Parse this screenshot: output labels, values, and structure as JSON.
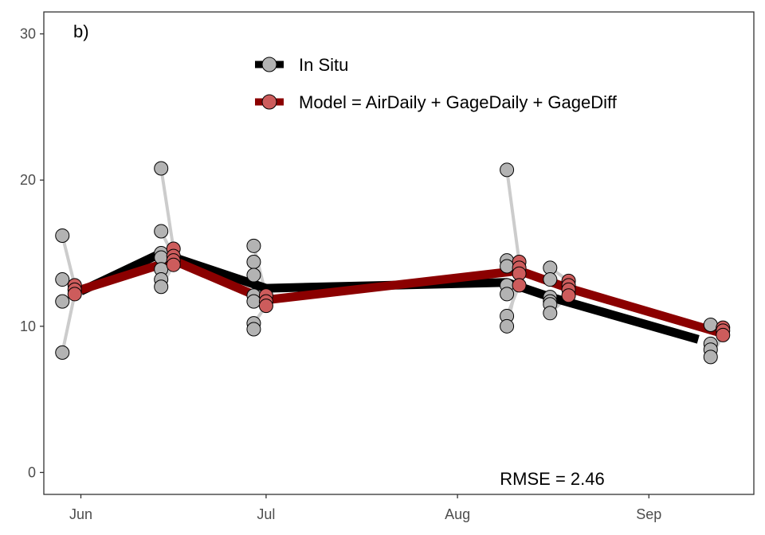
{
  "chart_data": {
    "type": "line",
    "panel_label": "b)",
    "annotation": "RMSE = 2.46",
    "xlabel": "",
    "ylabel": "",
    "x_axis": {
      "type": "date",
      "ticks": [
        "Jun",
        "Jul",
        "Aug",
        "Sep"
      ],
      "tick_dates": [
        "2017-06-01",
        "2017-07-01",
        "2017-08-01",
        "2017-09-01"
      ],
      "range": [
        "2017-05-26",
        "2017-09-18"
      ]
    },
    "y_axis": {
      "range": [
        -1.5,
        31.5
      ],
      "ticks": [
        "0",
        "10",
        "20",
        "30"
      ],
      "tick_values": [
        0,
        10,
        20,
        30
      ]
    },
    "grid": false,
    "legend_position": "top-center",
    "colors": {
      "in_situ_line": "#000000",
      "in_situ_point": "#b3b3b3",
      "model_line": "#8b0000",
      "model_point": "#cd5c5c",
      "connector": "#cccccc"
    },
    "series": [
      {
        "name": "In Situ",
        "line": [
          {
            "x": "2017-06-01",
            "y": 12.4
          },
          {
            "x": "2017-06-14",
            "y": 15.0
          },
          {
            "x": "2017-07-01",
            "y": 12.6
          },
          {
            "x": "2017-08-09",
            "y": 13.0
          },
          {
            "x": "2017-08-16",
            "y": 12.0
          },
          {
            "x": "2017-09-09",
            "y": 9.1
          }
        ],
        "points": [
          {
            "x": "2017-05-29",
            "y": 16.2
          },
          {
            "x": "2017-05-29",
            "y": 13.2
          },
          {
            "x": "2017-05-29",
            "y": 11.7
          },
          {
            "x": "2017-05-29",
            "y": 8.2
          },
          {
            "x": "2017-06-14",
            "y": 20.8
          },
          {
            "x": "2017-06-14",
            "y": 16.5
          },
          {
            "x": "2017-06-14",
            "y": 15.0
          },
          {
            "x": "2017-06-14",
            "y": 14.7
          },
          {
            "x": "2017-06-14",
            "y": 13.9
          },
          {
            "x": "2017-06-14",
            "y": 13.2
          },
          {
            "x": "2017-06-14",
            "y": 12.7
          },
          {
            "x": "2017-06-29",
            "y": 15.5
          },
          {
            "x": "2017-06-29",
            "y": 14.4
          },
          {
            "x": "2017-06-29",
            "y": 13.5
          },
          {
            "x": "2017-06-29",
            "y": 12.1
          },
          {
            "x": "2017-06-29",
            "y": 11.7
          },
          {
            "x": "2017-06-29",
            "y": 10.2
          },
          {
            "x": "2017-06-29",
            "y": 9.8
          },
          {
            "x": "2017-08-09",
            "y": 20.7
          },
          {
            "x": "2017-08-09",
            "y": 14.5
          },
          {
            "x": "2017-08-09",
            "y": 14.1
          },
          {
            "x": "2017-08-09",
            "y": 12.8
          },
          {
            "x": "2017-08-09",
            "y": 12.2
          },
          {
            "x": "2017-08-09",
            "y": 10.7
          },
          {
            "x": "2017-08-09",
            "y": 10.0
          },
          {
            "x": "2017-08-16",
            "y": 14.0
          },
          {
            "x": "2017-08-16",
            "y": 13.2
          },
          {
            "x": "2017-08-16",
            "y": 12.0
          },
          {
            "x": "2017-08-16",
            "y": 11.7
          },
          {
            "x": "2017-08-16",
            "y": 11.5
          },
          {
            "x": "2017-08-16",
            "y": 10.9
          },
          {
            "x": "2017-09-11",
            "y": 10.1
          },
          {
            "x": "2017-09-11",
            "y": 8.8
          },
          {
            "x": "2017-09-11",
            "y": 8.4
          },
          {
            "x": "2017-09-11",
            "y": 7.9
          }
        ]
      },
      {
        "name": "Model = AirDaily + GageDaily + GageDiff",
        "line": [
          {
            "x": "2017-06-01",
            "y": 12.5
          },
          {
            "x": "2017-06-16",
            "y": 14.5
          },
          {
            "x": "2017-07-01",
            "y": 11.8
          },
          {
            "x": "2017-08-11",
            "y": 13.8
          },
          {
            "x": "2017-08-19",
            "y": 12.6
          },
          {
            "x": "2017-09-13",
            "y": 9.5
          }
        ],
        "points": [
          {
            "x": "2017-05-31",
            "y": 12.8
          },
          {
            "x": "2017-05-31",
            "y": 12.5
          },
          {
            "x": "2017-05-31",
            "y": 12.2
          },
          {
            "x": "2017-06-16",
            "y": 15.3
          },
          {
            "x": "2017-06-16",
            "y": 14.8
          },
          {
            "x": "2017-06-16",
            "y": 14.5
          },
          {
            "x": "2017-06-16",
            "y": 14.2
          },
          {
            "x": "2017-07-01",
            "y": 12.1
          },
          {
            "x": "2017-07-01",
            "y": 11.7
          },
          {
            "x": "2017-07-01",
            "y": 11.4
          },
          {
            "x": "2017-08-11",
            "y": 14.4
          },
          {
            "x": "2017-08-11",
            "y": 14.0
          },
          {
            "x": "2017-08-11",
            "y": 13.6
          },
          {
            "x": "2017-08-11",
            "y": 12.8
          },
          {
            "x": "2017-08-19",
            "y": 13.1
          },
          {
            "x": "2017-08-19",
            "y": 12.8
          },
          {
            "x": "2017-08-19",
            "y": 12.5
          },
          {
            "x": "2017-08-19",
            "y": 12.1
          },
          {
            "x": "2017-09-13",
            "y": 9.9
          },
          {
            "x": "2017-09-13",
            "y": 9.7
          },
          {
            "x": "2017-09-13",
            "y": 9.4
          }
        ]
      }
    ],
    "connectors": [
      {
        "x1": "2017-05-29",
        "y1": 16.2,
        "x2": "2017-05-31",
        "y2": 12.8
      },
      {
        "x1": "2017-05-29",
        "y1": 8.2,
        "x2": "2017-05-31",
        "y2": 12.2
      },
      {
        "x1": "2017-06-14",
        "y1": 20.8,
        "x2": "2017-06-16",
        "y2": 15.3
      },
      {
        "x1": "2017-06-14",
        "y1": 16.5,
        "x2": "2017-06-16",
        "y2": 14.8
      },
      {
        "x1": "2017-06-14",
        "y1": 12.7,
        "x2": "2017-06-16",
        "y2": 14.2
      },
      {
        "x1": "2017-06-29",
        "y1": 15.5,
        "x2": "2017-07-01",
        "y2": 12.1
      },
      {
        "x1": "2017-06-29",
        "y1": 13.5,
        "x2": "2017-07-01",
        "y2": 11.7
      },
      {
        "x1": "2017-06-29",
        "y1": 10.2,
        "x2": "2017-07-01",
        "y2": 11.4
      },
      {
        "x1": "2017-08-09",
        "y1": 20.7,
        "x2": "2017-08-11",
        "y2": 14.4
      },
      {
        "x1": "2017-08-09",
        "y1": 10.0,
        "x2": "2017-08-11",
        "y2": 13.6
      },
      {
        "x1": "2017-08-09",
        "y1": 10.7,
        "x2": "2017-08-11",
        "y2": 12.8
      },
      {
        "x1": "2017-08-16",
        "y1": 14.0,
        "x2": "2017-08-19",
        "y2": 13.1
      },
      {
        "x1": "2017-08-16",
        "y1": 10.9,
        "x2": "2017-08-19",
        "y2": 12.1
      },
      {
        "x1": "2017-09-11",
        "y1": 10.1,
        "x2": "2017-09-13",
        "y2": 9.9
      },
      {
        "x1": "2017-09-11",
        "y1": 7.9,
        "x2": "2017-09-13",
        "y2": 9.4
      }
    ]
  }
}
